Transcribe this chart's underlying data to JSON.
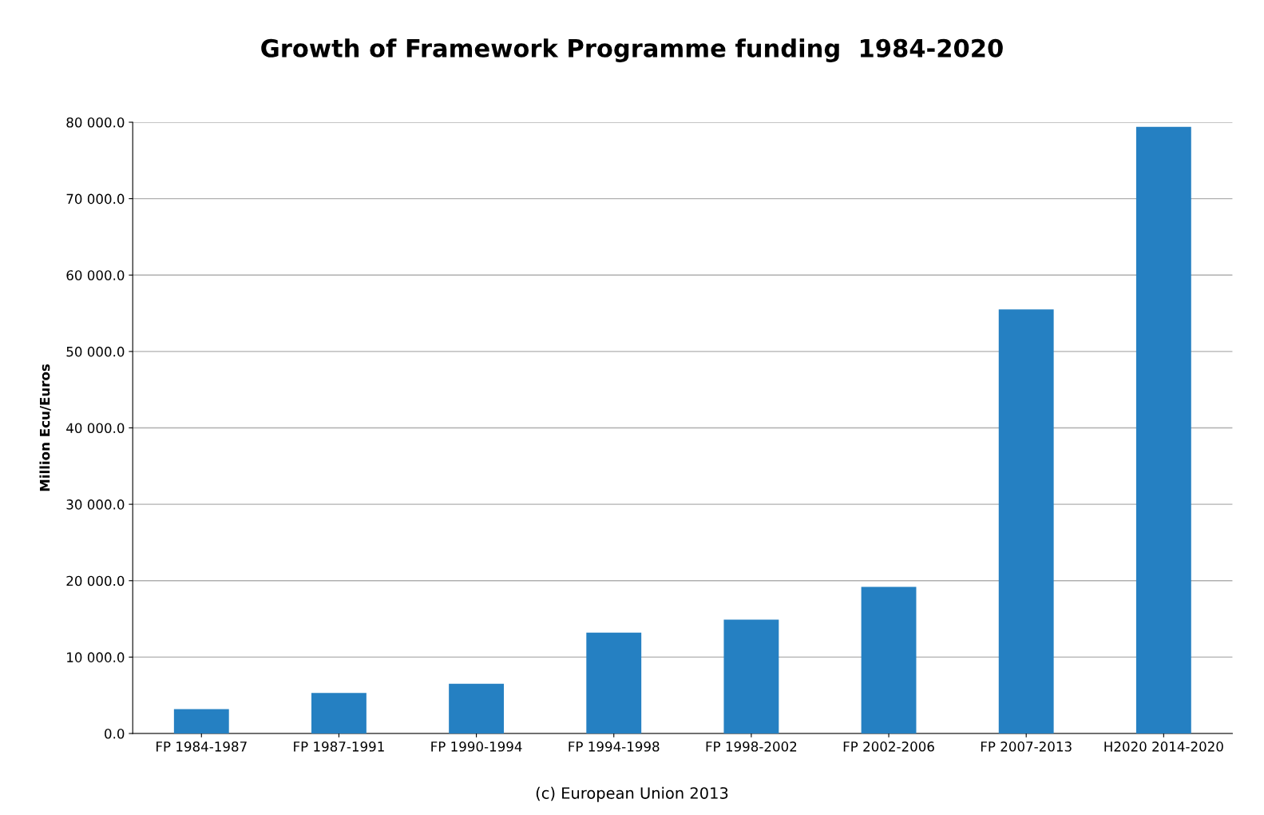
{
  "chart_data": {
    "type": "bar",
    "title": "Growth of Framework Programme funding  1984-2020",
    "ylabel": "Million Ecu/Euros",
    "categories": [
      "FP 1984-1987",
      "FP 1987-1991",
      "FP 1990-1994",
      "FP 1994-1998",
      "FP 1998-2002",
      "FP 2002-2006",
      "FP 2007-2013",
      "H2020 2014-2020"
    ],
    "values": [
      3200,
      5300,
      6500,
      13200,
      14900,
      19200,
      55500,
      79400
    ],
    "color": "#2580c2",
    "ylim": [
      0,
      80000
    ],
    "yticks": [
      {
        "value": 0,
        "label": "0.0"
      },
      {
        "value": 10000,
        "label": "10 000.0"
      },
      {
        "value": 20000,
        "label": "20 000.0"
      },
      {
        "value": 30000,
        "label": "30 000.0"
      },
      {
        "value": 40000,
        "label": "40 000.0"
      },
      {
        "value": 50000,
        "label": "50 000.0"
      },
      {
        "value": 60000,
        "label": "60 000.0"
      },
      {
        "value": 70000,
        "label": "70 000.0"
      },
      {
        "value": 80000,
        "label": "80 000.0"
      }
    ],
    "grid": "y",
    "annotations": [
      "(c) European Union 2013"
    ]
  }
}
